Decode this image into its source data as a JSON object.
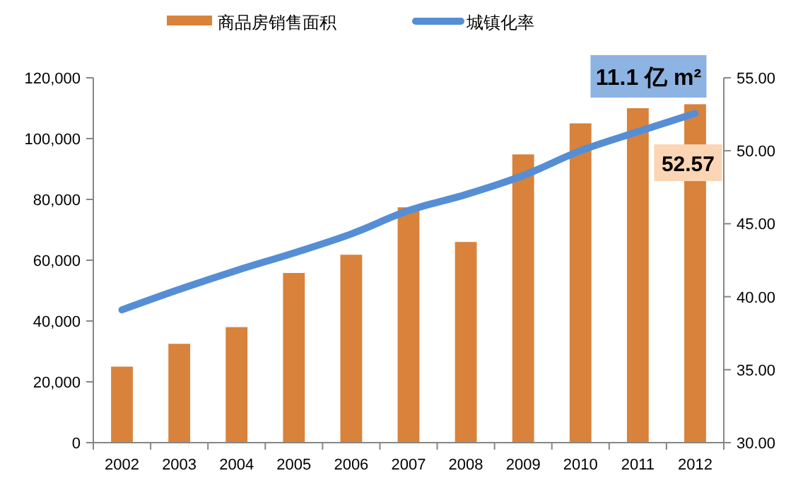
{
  "chart_data": {
    "type": "bar",
    "categories": [
      "2002",
      "2003",
      "2004",
      "2005",
      "2006",
      "2007",
      "2008",
      "2009",
      "2010",
      "2011",
      "2012"
    ],
    "series": [
      {
        "name": "商品房销售面积",
        "color": "#d9823b",
        "values": [
          25000,
          32500,
          38000,
          55800,
          61800,
          77400,
          66000,
          94800,
          105000,
          110000,
          111300
        ]
      },
      {
        "name": "城镇化率",
        "type": "line",
        "axis": "y2",
        "color": "#558ed5",
        "values": [
          39.1,
          40.5,
          41.8,
          43.0,
          44.3,
          45.9,
          47.0,
          48.3,
          50.0,
          51.3,
          52.57
        ],
        "value_labels": [
          null,
          null,
          null,
          null,
          null,
          null,
          null,
          null,
          null,
          null,
          "52.57"
        ]
      }
    ],
    "ylim": [
      0,
      120000
    ],
    "yticks": [
      {
        "value": 0,
        "label": "0"
      },
      {
        "value": 20000,
        "label": "20,000"
      },
      {
        "value": 40000,
        "label": "40,000"
      },
      {
        "value": 60000,
        "label": "60,000"
      },
      {
        "value": 80000,
        "label": "80,000"
      },
      {
        "value": 100000,
        "label": "100,000"
      },
      {
        "value": 120000,
        "label": "120,000"
      }
    ],
    "y2lim": [
      30,
      55
    ],
    "y2ticks": [
      {
        "value": 30,
        "label": "30.00"
      },
      {
        "value": 35,
        "label": "35.00"
      },
      {
        "value": 40,
        "label": "40.00"
      },
      {
        "value": 45,
        "label": "45.00"
      },
      {
        "value": 50,
        "label": "50.00"
      },
      {
        "value": 55,
        "label": "55.00"
      }
    ],
    "annotations": [
      "11.1 亿 m²"
    ],
    "legend": "top",
    "grid": false
  }
}
